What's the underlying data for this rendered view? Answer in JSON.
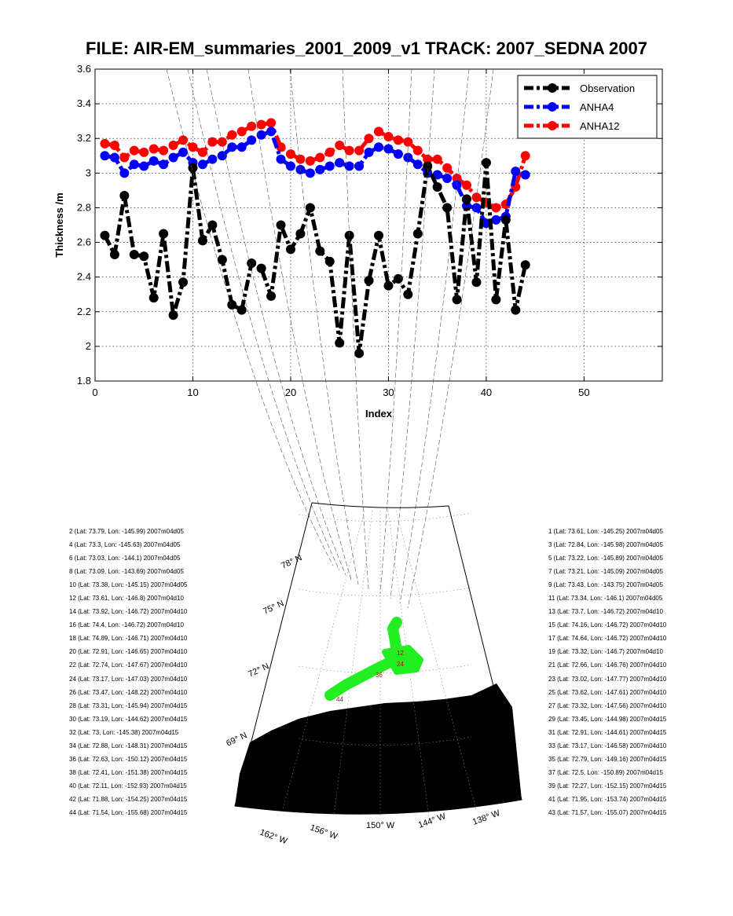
{
  "title": "FILE: AIR-EM_summaries_2001_2009_v1 TRACK: 2007_SEDNA 2007",
  "chart_data": {
    "type": "line",
    "xlabel": "Index",
    "ylabel": "Thickness /m",
    "xlim": [
      0,
      58
    ],
    "ylim": [
      1.8,
      3.6
    ],
    "x_ticks": [
      "0",
      "10",
      "20",
      "30",
      "40",
      "50"
    ],
    "y_ticks": [
      "1.8",
      "2",
      "2.2",
      "2.4",
      "2.6",
      "2.8",
      "3",
      "3.2",
      "3.4",
      "3.6"
    ],
    "grid": true,
    "legend_position": "top-right",
    "series": [
      {
        "name": "Observation",
        "color": "#000000",
        "values": [
          2.64,
          2.53,
          2.87,
          2.53,
          2.52,
          2.28,
          2.65,
          2.18,
          2.37,
          3.03,
          2.61,
          2.7,
          2.5,
          2.24,
          2.21,
          2.48,
          2.45,
          2.29,
          2.7,
          2.56,
          2.65,
          2.8,
          2.55,
          2.49,
          2.02,
          2.64,
          1.96,
          2.38,
          2.64,
          2.35,
          2.39,
          2.3,
          2.65,
          3.04,
          2.92,
          2.8,
          2.27,
          2.85,
          2.37,
          3.06,
          2.27,
          2.73,
          2.21,
          2.47
        ]
      },
      {
        "name": "ANHA4",
        "color": "#0000ff",
        "values": [
          3.1,
          3.09,
          3.0,
          3.05,
          3.04,
          3.07,
          3.05,
          3.09,
          3.12,
          3.06,
          3.05,
          3.08,
          3.1,
          3.15,
          3.15,
          3.19,
          3.22,
          3.24,
          3.08,
          3.04,
          3.02,
          3.0,
          3.02,
          3.04,
          3.06,
          3.04,
          3.04,
          3.12,
          3.15,
          3.14,
          3.11,
          3.09,
          3.05,
          3.0,
          2.99,
          2.97,
          2.93,
          2.81,
          2.8,
          2.71,
          2.73,
          2.75,
          3.01,
          2.99
        ]
      },
      {
        "name": "ANHA12",
        "color": "#ff0000",
        "values": [
          3.17,
          3.16,
          3.09,
          3.13,
          3.12,
          3.14,
          3.13,
          3.16,
          3.19,
          3.15,
          3.12,
          3.18,
          3.18,
          3.22,
          3.24,
          3.27,
          3.28,
          3.29,
          3.15,
          3.11,
          3.08,
          3.07,
          3.09,
          3.12,
          3.16,
          3.13,
          3.13,
          3.2,
          3.24,
          3.21,
          3.19,
          3.18,
          3.13,
          3.08,
          3.08,
          3.03,
          2.97,
          2.93,
          2.86,
          2.83,
          2.8,
          2.82,
          2.92,
          3.1
        ]
      }
    ]
  },
  "map": {
    "lat_labels": [
      "78° N",
      "75° N",
      "72° N",
      "69° N"
    ],
    "lon_labels": [
      "162° W",
      "156° W",
      "150° W",
      "144° W",
      "138° W"
    ],
    "track_labels": [
      "12",
      "24",
      "36",
      "44"
    ]
  },
  "points_left": [
    "2 (Lat: 73.79, Lon: -145.99) 2007m04d05",
    "4 (Lat: 73.3, Lon: -145.63) 2007m04d05",
    "6 (Lat: 73.03, Lon: -144.1) 2007m04d05",
    "8 (Lat: 73.09, Lon: -143.69) 2007m04d05",
    "10 (Lat: 73.38, Lon: -145.15) 2007m04d05",
    "12 (Lat: 73.61, Lon: -146.8) 2007m04d10",
    "14 (Lat: 73.92, Lon: -146.72) 2007m04d10",
    "16 (Lat: 74.4, Lon: -146.72) 2007m04d10",
    "18 (Lat: 74.89, Lon: -146.71) 2007m04d10",
    "20 (Lat: 72.91, Lon: -146.65) 2007m04d10",
    "22 (Lat: 72.74, Lon: -147.67) 2007m04d10",
    "24 (Lat: 73.17, Lon: -147.03) 2007m04d10",
    "26 (Lat: 73.47, Lon: -148.22) 2007m04d10",
    "28 (Lat: 73.31, Lon: -145.94) 2007m04d15",
    "30 (Lat: 73.19, Lon: -144.62) 2007m04d15",
    "32 (Lat: 73, Lon: -145.38) 2007m04d15",
    "34 (Lat: 72.88, Lon: -148.31) 2007m04d15",
    "36 (Lat: 72.63, Lon: -150.12) 2007m04d15",
    "38 (Lat: 72.41, Lon: -151.38) 2007m04d15",
    "40 (Lat: 72.11, Lon: -152.93) 2007m04d15",
    "42 (Lat: 71.88, Lon: -154.25) 2007m04d15",
    "44 (Lat: 71.54, Lon: -155.68) 2007m04d15"
  ],
  "points_right": [
    "1 (Lat: 73.61, Lon: -145.25) 2007m04d05",
    "3 (Lat: 72.84, Lon: -145.98) 2007m04d05",
    "5 (Lat: 73.22, Lon: -145.89) 2007m04d05",
    "7 (Lat: 73.21, Lon: -145.09) 2007m04d05",
    "9 (Lat: 73.43, Lon: -143.75) 2007m04d05",
    "11 (Lat: 73.34, Lon: -146.1) 2007m04d05",
    "13 (Lat: 73.7, Lon: -146.72) 2007m04d10",
    "15 (Lat: 74.16, Lon: -146.72) 2007m04d10",
    "17 (Lat: 74.64, Lon: -146.72) 2007m04d10",
    "19 (Lat: 73.32, Lon: -146.7) 2007m04d10",
    "21 (Lat: 72.66, Lon: -146.76) 2007m04d10",
    "23 (Lat: 73.02, Lon: -147.77) 2007m04d10",
    "25 (Lat: 73.62, Lon: -147.61) 2007m04d10",
    "27 (Lat: 73.32, Lon: -147.56) 2007m04d10",
    "29 (Lat: 73.45, Lon: -144.98) 2007m04d15",
    "31 (Lat: 72.91, Lon: -144.61) 2007m04d15",
    "33 (Lat: 73.17, Lon: -146.58) 2007m04d10",
    "35 (Lat: 72.79, Lon: -149.16) 2007m04d15",
    "37 (Lat: 72.5, Lon: -150.89) 2007m04d15",
    "39 (Lat: 72.27, Lon: -152.15) 2007m04d15",
    "41 (Lat: 71.95, Lon: -153.74) 2007m04d15",
    "43 (Lat: 71.57, Lon: -155.07) 2007m04d15"
  ]
}
